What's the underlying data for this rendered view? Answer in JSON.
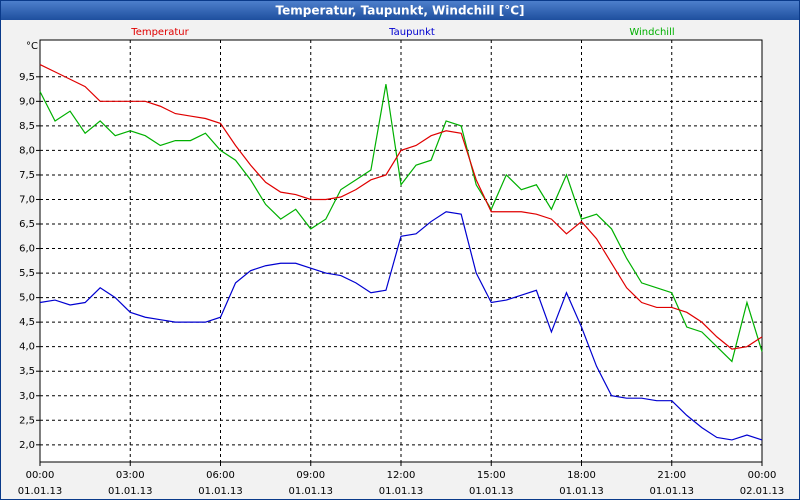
{
  "chart_data": {
    "type": "line",
    "title": "Temperatur, Taupunkt, Windchill [°C]",
    "y_unit": "°C",
    "x": [
      0,
      0.5,
      1,
      1.5,
      2,
      2.5,
      3,
      3.5,
      4,
      4.5,
      5,
      5.5,
      6,
      6.5,
      7,
      7.5,
      8,
      8.5,
      9,
      9.5,
      10,
      10.5,
      11,
      11.5,
      12,
      12.5,
      13,
      13.5,
      14,
      14.5,
      15,
      15.5,
      16,
      16.5,
      17,
      17.5,
      18,
      18.5,
      19,
      19.5,
      20,
      20.5,
      21,
      21.5,
      22,
      22.5,
      23,
      23.5,
      24
    ],
    "series": [
      {
        "name": "Windchill",
        "color": "#00b000",
        "values": [
          9.2,
          8.6,
          8.8,
          8.35,
          8.6,
          8.3,
          8.4,
          8.3,
          8.1,
          8.2,
          8.2,
          8.35,
          8.0,
          7.8,
          7.4,
          6.9,
          6.6,
          6.8,
          6.4,
          6.6,
          7.2,
          7.4,
          7.6,
          9.35,
          7.3,
          7.7,
          7.8,
          8.6,
          8.5,
          7.3,
          6.8,
          7.5,
          7.2,
          7.3,
          6.8,
          7.5,
          6.6,
          6.7,
          6.4,
          5.8,
          5.3,
          5.2,
          5.1,
          4.4,
          4.3,
          4.0,
          3.7,
          4.9,
          3.9
        ]
      },
      {
        "name": "Temperatur",
        "color": "#e00000",
        "values": [
          9.75,
          9.6,
          9.45,
          9.3,
          9.0,
          9.0,
          9.0,
          9.0,
          8.9,
          8.75,
          8.7,
          8.65,
          8.55,
          8.1,
          7.7,
          7.35,
          7.15,
          7.1,
          7.0,
          7.0,
          7.05,
          7.2,
          7.4,
          7.5,
          8.0,
          8.1,
          8.3,
          8.4,
          8.35,
          7.4,
          6.75,
          6.75,
          6.75,
          6.7,
          6.6,
          6.3,
          6.55,
          6.2,
          5.7,
          5.2,
          4.9,
          4.8,
          4.8,
          4.7,
          4.5,
          4.2,
          3.95,
          4.0,
          4.2
        ]
      },
      {
        "name": "Taupunkt",
        "color": "#0000d0",
        "values": [
          4.9,
          4.95,
          4.85,
          4.9,
          5.2,
          5.0,
          4.7,
          4.6,
          4.55,
          4.5,
          4.5,
          4.5,
          4.6,
          5.3,
          5.55,
          5.65,
          5.7,
          5.7,
          5.6,
          5.5,
          5.45,
          5.3,
          5.1,
          5.15,
          6.25,
          6.3,
          6.55,
          6.75,
          6.7,
          5.5,
          4.9,
          4.95,
          5.05,
          5.15,
          4.3,
          5.1,
          4.4,
          3.6,
          3.0,
          2.95,
          2.95,
          2.9,
          2.9,
          2.6,
          2.35,
          2.15,
          2.1,
          2.2,
          2.1
        ]
      }
    ],
    "legend_order": [
      1,
      2,
      0
    ],
    "xlim": [
      0,
      24
    ],
    "xticks": [
      {
        "value": 0,
        "label": "00:00"
      },
      {
        "value": 3,
        "label": "03:00"
      },
      {
        "value": 6,
        "label": "06:00"
      },
      {
        "value": 9,
        "label": "09:00"
      },
      {
        "value": 12,
        "label": "12:00"
      },
      {
        "value": 15,
        "label": "15:00"
      },
      {
        "value": 18,
        "label": "18:00"
      },
      {
        "value": 21,
        "label": "21:00"
      },
      {
        "value": 24,
        "label": "00:00"
      }
    ],
    "xtick_dates": [
      "01.01.13",
      "01.01.13",
      "01.01.13",
      "01.01.13",
      "01.01.13",
      "01.01.13",
      "01.01.13",
      "01.01.13",
      "02.01.13"
    ],
    "ylim": [
      1.65,
      10.25
    ],
    "yticks": [
      {
        "value": 2,
        "label": "2,0"
      },
      {
        "value": 2.5,
        "label": "2,5"
      },
      {
        "value": 3,
        "label": "3,0"
      },
      {
        "value": 3.5,
        "label": "3,5"
      },
      {
        "value": 4,
        "label": "4,0"
      },
      {
        "value": 4.5,
        "label": "4,5"
      },
      {
        "value": 5,
        "label": "5,0"
      },
      {
        "value": 5.5,
        "label": "5,5"
      },
      {
        "value": 6,
        "label": "6,0"
      },
      {
        "value": 6.5,
        "label": "6,5"
      },
      {
        "value": 7,
        "label": "7,0"
      },
      {
        "value": 7.5,
        "label": "7,5"
      },
      {
        "value": 8,
        "label": "8,0"
      },
      {
        "value": 8.5,
        "label": "8,5"
      },
      {
        "value": 9,
        "label": "9,0"
      },
      {
        "value": 9.5,
        "label": "9,5"
      }
    ],
    "grid": true
  }
}
